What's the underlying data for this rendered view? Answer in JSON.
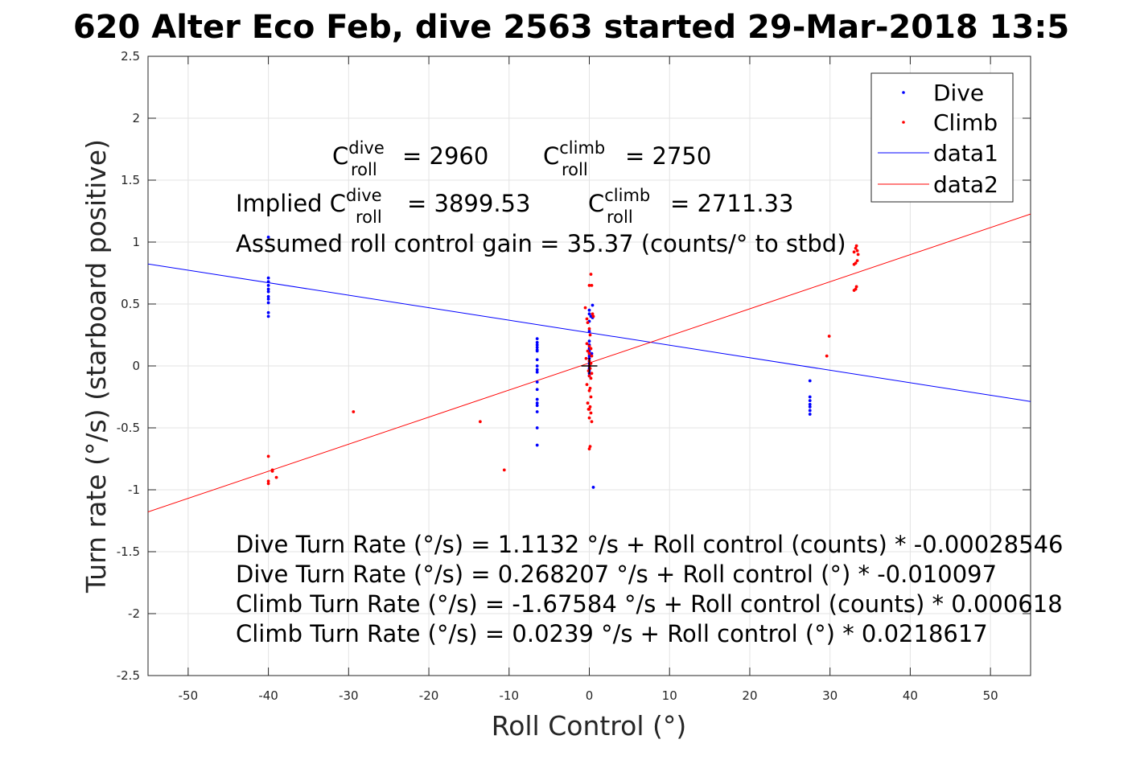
{
  "chart_data": {
    "type": "scatter",
    "title": "620 Alter Eco Feb, dive 2563 started 29-Mar-2018 13:5",
    "xlabel": "Roll Control (°)",
    "ylabel": "Turn rate (°/s) (starboard positive)",
    "xlim": [
      -55,
      55
    ],
    "ylim": [
      -2.5,
      2.5
    ],
    "xticks": [
      -50,
      -40,
      -30,
      -20,
      -10,
      0,
      10,
      20,
      30,
      40,
      50
    ],
    "yticks": [
      -2.5,
      -2,
      -1.5,
      -1,
      -0.5,
      0,
      0.5,
      1,
      1.5,
      2,
      2.5
    ],
    "grid": true,
    "legend_position": "top-right",
    "colors": {
      "dive": "#0000ff",
      "climb": "#ff0000",
      "axis": "#262626",
      "grid": "#e3e3e3",
      "marker": "#000000"
    },
    "series": [
      {
        "name": "Dive",
        "kind": "points",
        "color": "#0000ff",
        "x": [
          -40,
          -40,
          -40,
          -40,
          -40,
          -40,
          -40,
          -40,
          -40,
          -40,
          -40,
          -6.5,
          -6.5,
          -6.5,
          -6.5,
          -6.5,
          -6.5,
          -6.5,
          -6.5,
          -6.5,
          -6.5,
          -6.5,
          -6.5,
          -6.5,
          -6.5,
          -6.5,
          -6.5,
          -6.5,
          -6.5,
          0,
          0,
          0,
          0,
          0,
          0,
          0,
          0,
          0,
          0,
          0,
          0,
          0,
          0,
          0,
          0,
          0,
          0,
          0.2,
          0.4,
          0.4,
          0.5,
          0.3,
          27.5,
          27.5,
          27.5,
          27.5,
          27.5,
          27.5,
          27.5
        ],
        "y": [
          1.04,
          0.71,
          0.68,
          0.65,
          0.62,
          0.6,
          0.56,
          0.54,
          0.51,
          0.43,
          0.4,
          0.22,
          0.19,
          0.17,
          0.15,
          0.13,
          0.12,
          0.05,
          0.0,
          -0.03,
          -0.05,
          -0.13,
          -0.19,
          -0.27,
          -0.3,
          -0.32,
          -0.37,
          -0.5,
          -0.64,
          0.45,
          0.42,
          0.36,
          0.28,
          0.2,
          0.17,
          0.14,
          0.12,
          0.1,
          0.08,
          0.06,
          0.04,
          0.02,
          0.0,
          -0.02,
          -0.04,
          -0.06,
          -0.08,
          0.4,
          0.39,
          0.49,
          -0.98,
          0.1,
          -0.12,
          -0.25,
          -0.28,
          -0.31,
          -0.33,
          -0.36,
          -0.39
        ]
      },
      {
        "name": "Climb",
        "kind": "points",
        "color": "#ff0000",
        "x": [
          -40,
          -40,
          -40,
          -39.5,
          -39.5,
          -39,
          -29.4,
          -13.6,
          -10.6,
          -0.5,
          -0.3,
          -0.2,
          0,
          0.2,
          0.3,
          0,
          0.4,
          0.5,
          0.1,
          -0.3,
          0,
          0.2,
          -0.2,
          0,
          0.3,
          -0.4,
          0,
          0.2,
          0,
          0.1,
          -0.1,
          0.3,
          0,
          0.2,
          -0.3,
          0.1,
          0,
          0.2,
          -0.2,
          0.1,
          0,
          0.2,
          0,
          0.1,
          0,
          0.3,
          -0.1,
          29.6,
          29.9,
          33,
          33.2,
          33.3,
          33,
          33.2,
          33.4,
          33.5,
          33,
          33.2,
          33.3,
          33.4
        ],
        "y": [
          -0.73,
          -0.93,
          -0.95,
          -0.84,
          -0.85,
          -0.9,
          -0.37,
          -0.45,
          -0.84,
          0.47,
          0.38,
          0.35,
          0.65,
          0.74,
          0.65,
          0.3,
          0.42,
          0.4,
          0.25,
          0.18,
          0.16,
          0.14,
          0.12,
          0.1,
          0.08,
          0.06,
          0.04,
          0.02,
          0.0,
          -0.02,
          -0.04,
          -0.06,
          -0.08,
          -0.1,
          -0.15,
          -0.18,
          -0.2,
          -0.25,
          -0.3,
          -0.33,
          -0.35,
          -0.38,
          -0.42,
          -0.65,
          -0.67,
          -0.45,
          -0.35,
          0.08,
          0.24,
          0.61,
          0.62,
          0.64,
          0.82,
          0.83,
          0.85,
          0.9,
          0.92,
          0.95,
          0.97,
          0.93
        ]
      },
      {
        "name": "data1",
        "kind": "line",
        "color": "#0000ff",
        "x": [
          -55,
          55
        ],
        "y": [
          0.8234,
          -0.2871
        ]
      },
      {
        "name": "data2",
        "kind": "line",
        "color": "#ff0000",
        "x": [
          -55,
          55
        ],
        "y": [
          -1.1785,
          1.2263
        ]
      }
    ],
    "origin_marker": {
      "x": 0,
      "y": 0
    },
    "annotations": {
      "c_dive_prefix": "C",
      "c_dive_sup": "dive",
      "c_dive_sub": "roll",
      "c_dive_value": "= 2960",
      "c_climb_prefix": "C",
      "c_climb_sup": "climb",
      "c_climb_sub": "roll",
      "c_climb_value": "= 2750",
      "implied_prefix": "Implied C",
      "implied_dive_sup": "dive",
      "implied_dive_sub": "roll",
      "implied_dive_value": "= 3899.53",
      "implied_climb_prefix": "C",
      "implied_climb_sup": "climb",
      "implied_climb_sub": "roll",
      "implied_climb_value": "= 2711.33",
      "gain": "Assumed roll control gain = 35.37 (counts/° to stbd)",
      "eq1": "Dive Turn Rate (°/s) = 1.1132 °/s + Roll control (counts) * -0.00028546",
      "eq2": "Dive Turn Rate (°/s) = 0.268207 °/s + Roll control (°) * -0.010097",
      "eq3": "Climb Turn Rate (°/s) = -1.67584 °/s + Roll control (counts) * 0.000618",
      "eq4": "Climb Turn Rate (°/s) = 0.0239 °/s + Roll control (°) * 0.0218617"
    },
    "legend": [
      "Dive",
      "Climb",
      "data1",
      "data2"
    ]
  }
}
